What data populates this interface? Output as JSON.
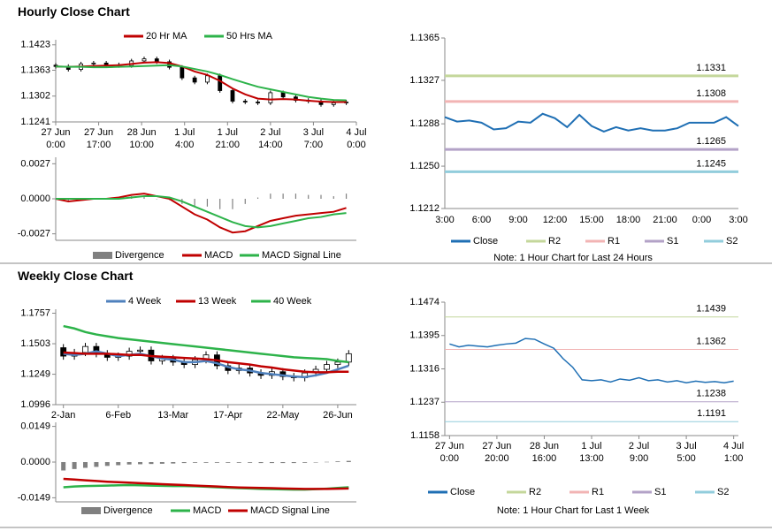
{
  "chart_data": [
    {
      "type": "candlestick",
      "title": "Hourly Close Chart",
      "x": [
        0,
        5,
        10,
        15,
        20,
        25,
        30,
        35,
        40,
        45,
        50,
        55,
        60,
        65,
        70,
        75,
        80,
        85,
        90,
        95,
        100,
        105,
        110,
        115
      ],
      "open": [
        1.1375,
        1.1372,
        1.1365,
        1.1378,
        1.138,
        1.1376,
        1.1374,
        1.1385,
        1.139,
        1.1383,
        1.137,
        1.1345,
        1.1335,
        1.135,
        1.1315,
        1.129,
        1.1288,
        1.1286,
        1.131,
        1.13,
        1.1292,
        1.129,
        1.1282,
        1.1286
      ],
      "high": [
        1.138,
        1.1377,
        1.1383,
        1.1385,
        1.1385,
        1.1381,
        1.139,
        1.1395,
        1.1395,
        1.1388,
        1.1375,
        1.135,
        1.1355,
        1.1355,
        1.132,
        1.1295,
        1.1293,
        1.1315,
        1.1315,
        1.1305,
        1.1297,
        1.1295,
        1.1291,
        1.1293
      ],
      "low": [
        1.1367,
        1.136,
        1.136,
        1.1373,
        1.1371,
        1.1369,
        1.1369,
        1.138,
        1.1378,
        1.1365,
        1.134,
        1.133,
        1.133,
        1.131,
        1.1285,
        1.1283,
        1.1281,
        1.1281,
        1.1295,
        1.1287,
        1.1285,
        1.1277,
        1.1277,
        1.1281
      ],
      "close": [
        1.1372,
        1.1365,
        1.1378,
        1.138,
        1.1376,
        1.1374,
        1.1385,
        1.139,
        1.1383,
        1.137,
        1.1345,
        1.1335,
        1.135,
        1.1315,
        1.129,
        1.1288,
        1.1286,
        1.131,
        1.13,
        1.1292,
        1.129,
        1.1282,
        1.1286,
        1.1288
      ],
      "series": [
        {
          "name": "20 Hr MA",
          "color": "#c00000",
          "values": [
            1.1372,
            1.1371,
            1.1372,
            1.1373,
            1.1374,
            1.1375,
            1.1378,
            1.1381,
            1.1382,
            1.138,
            1.1372,
            1.136,
            1.1352,
            1.1338,
            1.132,
            1.1306,
            1.1296,
            1.1294,
            1.1295,
            1.1294,
            1.1291,
            1.1289,
            1.1288,
            1.1288
          ]
        },
        {
          "name": "50 Hrs MA",
          "color": "#2db34a",
          "values": [
            1.1372,
            1.1371,
            1.1371,
            1.137,
            1.137,
            1.1371,
            1.1372,
            1.1373,
            1.1374,
            1.1375,
            1.1372,
            1.1366,
            1.136,
            1.1352,
            1.1342,
            1.1333,
            1.1324,
            1.1318,
            1.1312,
            1.1306,
            1.13,
            1.1296,
            1.1293,
            1.1292
          ]
        }
      ],
      "xlim": [
        0,
        119
      ],
      "xticks": [
        {
          "value": 0,
          "label": "27 Jun\n0:00"
        },
        {
          "value": 17,
          "label": "27 Jun\n17:00"
        },
        {
          "value": 34,
          "label": "28 Jun\n10:00"
        },
        {
          "value": 51,
          "label": "1 Jul\n4:00"
        },
        {
          "value": 68,
          "label": "1 Jul\n21:00"
        },
        {
          "value": 85,
          "label": "2 Jul\n14:00"
        },
        {
          "value": 102,
          "label": "3 Jul\n7:00"
        },
        {
          "value": 119,
          "label": "4 Jul\n0:00"
        }
      ],
      "ylim": [
        1.1241,
        1.1435
      ],
      "yticks": [
        1.1241,
        1.1302,
        1.1363,
        1.1423
      ],
      "legend": "top"
    },
    {
      "type": "macd",
      "x": [
        0,
        5,
        10,
        15,
        20,
        25,
        30,
        35,
        40,
        45,
        50,
        55,
        60,
        65,
        70,
        75,
        80,
        85,
        90,
        95,
        100,
        105,
        110,
        115
      ],
      "series": [
        {
          "name": "Divergence",
          "color": "#808080",
          "kind": "bar",
          "values": [
            0,
            -0.0002,
            -0.0001,
            0,
            0,
            0.0001,
            0.0002,
            0.0002,
            0,
            -0.0001,
            -0.0004,
            -0.0006,
            -0.0006,
            -0.0008,
            -0.0008,
            -0.0004,
            0.0001,
            0.0004,
            0.0004,
            0.0004,
            0.0003,
            0.0003,
            0.0002,
            0.0004
          ]
        },
        {
          "name": "MACD",
          "color": "#c00000",
          "kind": "line",
          "values": [
            0,
            -0.0002,
            -0.0001,
            0,
            0,
            0.0001,
            0.0003,
            0.0004,
            0.0002,
            0,
            -0.0006,
            -0.0012,
            -0.0016,
            -0.0022,
            -0.0026,
            -0.0025,
            -0.0021,
            -0.0017,
            -0.0015,
            -0.0013,
            -0.0012,
            -0.0011,
            -0.001,
            -0.0007
          ]
        },
        {
          "name": "MACD Signal Line",
          "color": "#2db34a",
          "kind": "line",
          "values": [
            0,
            0,
            0,
            0,
            0,
            0,
            0.0001,
            0.0002,
            0.0002,
            0.0001,
            -0.0002,
            -0.0006,
            -0.001,
            -0.0014,
            -0.0018,
            -0.0021,
            -0.0022,
            -0.0021,
            -0.0019,
            -0.0017,
            -0.0015,
            -0.0014,
            -0.0012,
            -0.0011
          ]
        }
      ],
      "xlim": [
        0,
        119
      ],
      "ylim": [
        -0.0032,
        0.0032
      ],
      "yticks": [
        -0.0027,
        {
          "value": 0,
          "label": "0.0000"
        },
        0.0027
      ],
      "legend": "bottom"
    },
    {
      "type": "line",
      "categories": [
        "3:00",
        null,
        null,
        "6:00",
        null,
        null,
        "9:00",
        null,
        null,
        "12:00",
        null,
        null,
        "15:00",
        null,
        null,
        "18:00",
        null,
        null,
        "21:00",
        null,
        null,
        "0:00",
        null,
        null,
        "3:00"
      ],
      "series": [
        {
          "name": "Close",
          "color": "#1f6fb4",
          "values": [
            1.1294,
            1.129,
            1.1291,
            1.1289,
            1.1283,
            1.1284,
            1.129,
            1.1289,
            1.1297,
            1.1293,
            1.1285,
            1.1296,
            1.1286,
            1.1281,
            1.1285,
            1.1282,
            1.1284,
            1.1282,
            1.1282,
            1.1284,
            1.1289,
            1.1289,
            1.1289,
            1.1294,
            1.1286
          ]
        }
      ],
      "levels": [
        {
          "name": "R2",
          "color": "#c4d79b",
          "value": 1.1331
        },
        {
          "name": "R1",
          "color": "#f2b4b4",
          "value": 1.1308
        },
        {
          "name": "S1",
          "color": "#b3a2c7",
          "value": 1.1265
        },
        {
          "name": "S2",
          "color": "#92cddc",
          "value": 1.1245
        }
      ],
      "ylim": [
        1.1212,
        1.1365
      ],
      "yticks": [
        1.1212,
        {
          "value": 1.125,
          "label": "1.1250"
        },
        1.1288,
        1.1327,
        1.1365
      ],
      "legend": "bottom",
      "note": "Note: 1 Hour Chart for Last 24 Hours"
    },
    {
      "type": "candlestick",
      "title": "Weekly Close Chart",
      "x": [
        0,
        1,
        2,
        3,
        4,
        5,
        6,
        7,
        8,
        9,
        10,
        11,
        12,
        13,
        14,
        15,
        16,
        17,
        18,
        19,
        20,
        21,
        22,
        23,
        24,
        25,
        26
      ],
      "open": [
        1.147,
        1.14,
        1.143,
        1.148,
        1.142,
        1.139,
        1.14,
        1.144,
        1.145,
        1.136,
        1.138,
        1.135,
        1.133,
        1.137,
        1.141,
        1.132,
        1.128,
        1.13,
        1.126,
        1.124,
        1.127,
        1.123,
        1.122,
        1.126,
        1.129,
        1.133,
        1.135
      ],
      "high": [
        1.15,
        1.146,
        1.151,
        1.151,
        1.145,
        1.143,
        1.147,
        1.148,
        1.148,
        1.141,
        1.141,
        1.138,
        1.14,
        1.144,
        1.144,
        1.135,
        1.133,
        1.133,
        1.129,
        1.13,
        1.13,
        1.126,
        1.129,
        1.132,
        1.136,
        1.138,
        1.145
      ],
      "low": [
        1.137,
        1.137,
        1.14,
        1.139,
        1.136,
        1.136,
        1.137,
        1.141,
        1.133,
        1.133,
        1.132,
        1.13,
        1.13,
        1.134,
        1.129,
        1.125,
        1.125,
        1.123,
        1.121,
        1.121,
        1.12,
        1.119,
        1.119,
        1.123,
        1.126,
        1.13,
        1.132
      ],
      "close": [
        1.14,
        1.143,
        1.148,
        1.142,
        1.139,
        1.14,
        1.144,
        1.145,
        1.136,
        1.138,
        1.135,
        1.133,
        1.137,
        1.141,
        1.132,
        1.128,
        1.13,
        1.126,
        1.124,
        1.127,
        1.123,
        1.122,
        1.126,
        1.129,
        1.133,
        1.135,
        1.142
      ],
      "series": [
        {
          "name": "4 Week",
          "color": "#4f81bd",
          "values": [
            1.142,
            1.141,
            1.142,
            1.144,
            1.142,
            1.14,
            1.141,
            1.142,
            1.14,
            1.138,
            1.137,
            1.135,
            1.135,
            1.136,
            1.134,
            1.131,
            1.129,
            1.128,
            1.126,
            1.125,
            1.124,
            1.123,
            1.1225,
            1.124,
            1.126,
            1.129,
            1.132
          ]
        },
        {
          "name": "13 Week",
          "color": "#c00000",
          "values": [
            1.143,
            1.1425,
            1.142,
            1.142,
            1.142,
            1.1415,
            1.141,
            1.141,
            1.14,
            1.1395,
            1.139,
            1.1385,
            1.138,
            1.1375,
            1.1365,
            1.135,
            1.134,
            1.133,
            1.1315,
            1.1305,
            1.129,
            1.128,
            1.127,
            1.1265,
            1.1265,
            1.127,
            1.127
          ]
        },
        {
          "name": "40 Week",
          "color": "#2db34a",
          "values": [
            1.165,
            1.163,
            1.16,
            1.158,
            1.1565,
            1.155,
            1.154,
            1.153,
            1.152,
            1.151,
            1.15,
            1.149,
            1.148,
            1.147,
            1.146,
            1.145,
            1.144,
            1.143,
            1.142,
            1.141,
            1.14,
            1.139,
            1.1385,
            1.138,
            1.1375,
            1.136,
            1.135
          ]
        }
      ],
      "xlim": [
        -0.7,
        26.7
      ],
      "xticks": [
        {
          "value": 0,
          "label": "2-Jan"
        },
        {
          "value": 5,
          "label": "6-Feb"
        },
        {
          "value": 10,
          "label": "13-Mar"
        },
        {
          "value": 15,
          "label": "17-Apr"
        },
        {
          "value": 20,
          "label": "22-May"
        },
        {
          "value": 25,
          "label": "26-Jun"
        }
      ],
      "ylim": [
        1.0996,
        1.179
      ],
      "yticks": [
        1.0996,
        1.1249,
        1.1503,
        1.1757
      ],
      "legend": "top"
    },
    {
      "type": "macd",
      "x": [
        0,
        1,
        2,
        3,
        4,
        5,
        6,
        7,
        8,
        9,
        10,
        11,
        12,
        13,
        14,
        15,
        16,
        17,
        18,
        19,
        20,
        21,
        22,
        23,
        24,
        25,
        26
      ],
      "series": [
        {
          "name": "Divergence",
          "color": "#808080",
          "kind": "bar",
          "values": [
            -0.0035,
            -0.0029,
            -0.0024,
            -0.002,
            -0.0016,
            -0.0013,
            -0.001,
            -0.0009,
            -0.0008,
            -0.0007,
            -0.0006,
            -0.0004,
            -0.0003,
            -0.0003,
            -0.0003,
            -0.0003,
            -0.0003,
            -0.0003,
            -0.0004,
            -0.0004,
            -0.0004,
            -0.0004,
            -0.0003,
            -0.0001,
            0.0001,
            0.0003,
            0.0005
          ]
        },
        {
          "name": "MACD",
          "color": "#2db34a",
          "kind": "line",
          "values": [
            -0.0105,
            -0.0102,
            -0.01,
            -0.0099,
            -0.0098,
            -0.0097,
            -0.0096,
            -0.0097,
            -0.0098,
            -0.0099,
            -0.01,
            -0.01,
            -0.0101,
            -0.0103,
            -0.0105,
            -0.0107,
            -0.0109,
            -0.011,
            -0.0112,
            -0.0113,
            -0.0114,
            -0.0115,
            -0.0115,
            -0.0113,
            -0.0111,
            -0.0108,
            -0.0105
          ]
        },
        {
          "name": "MACD Signal Line",
          "color": "#c00000",
          "kind": "line",
          "values": [
            -0.007,
            -0.0073,
            -0.0076,
            -0.0079,
            -0.0082,
            -0.0084,
            -0.0086,
            -0.0088,
            -0.009,
            -0.0092,
            -0.0094,
            -0.0096,
            -0.0098,
            -0.01,
            -0.0102,
            -0.0104,
            -0.0106,
            -0.0107,
            -0.0108,
            -0.0109,
            -0.011,
            -0.0111,
            -0.0112,
            -0.0112,
            -0.0112,
            -0.0111,
            -0.011
          ]
        }
      ],
      "xlim": [
        -0.7,
        26.7
      ],
      "ylim": [
        -0.0166,
        0.0166
      ],
      "yticks": [
        -0.0149,
        {
          "value": 0,
          "label": "0.0000"
        },
        0.0149
      ],
      "legend": "bottom"
    },
    {
      "type": "line",
      "x": [
        0,
        4,
        8,
        12,
        16,
        20,
        24,
        28,
        32,
        36,
        40,
        44,
        48,
        52,
        56,
        60,
        64,
        68,
        72,
        76,
        80,
        84,
        88,
        92,
        96,
        100,
        104,
        108,
        112,
        116,
        120
      ],
      "series": [
        {
          "name": "Close",
          "color": "#1f6fb4",
          "values": [
            1.1375,
            1.1368,
            1.1372,
            1.137,
            1.1368,
            1.1372,
            1.1375,
            1.1377,
            1.1388,
            1.1386,
            1.1375,
            1.1365,
            1.134,
            1.132,
            1.129,
            1.1288,
            1.129,
            1.1285,
            1.1292,
            1.1289,
            1.1295,
            1.1288,
            1.129,
            1.1285,
            1.1288,
            1.1283,
            1.1287,
            1.1284,
            1.1286,
            1.1283,
            1.1287
          ]
        }
      ],
      "levels": [
        {
          "name": "R2",
          "color": "#c4d79b",
          "value": 1.1439
        },
        {
          "name": "R1",
          "color": "#f2b4b4",
          "value": 1.1362
        },
        {
          "name": "S1",
          "color": "#b3a2c7",
          "value": 1.1238
        },
        {
          "name": "S2",
          "color": "#92cddc",
          "value": 1.1191
        }
      ],
      "xlim": [
        -2,
        122
      ],
      "xticks": [
        {
          "value": 0,
          "label": "27 Jun\n0:00"
        },
        {
          "value": 20,
          "label": "27 Jun\n20:00"
        },
        {
          "value": 40,
          "label": "28 Jun\n16:00"
        },
        {
          "value": 60,
          "label": "1 Jul\n13:00"
        },
        {
          "value": 80,
          "label": "2 Jul\n9:00"
        },
        {
          "value": 100,
          "label": "3 Jul\n5:00"
        },
        {
          "value": 120,
          "label": "4 Jul\n1:00"
        }
      ],
      "ylim": [
        1.1158,
        1.1474
      ],
      "yticks": [
        1.1158,
        1.1237,
        1.1316,
        1.1395,
        1.1474
      ],
      "legend": "bottom",
      "note": "Note: 1 Hour Chart for Last 1 Week"
    }
  ]
}
